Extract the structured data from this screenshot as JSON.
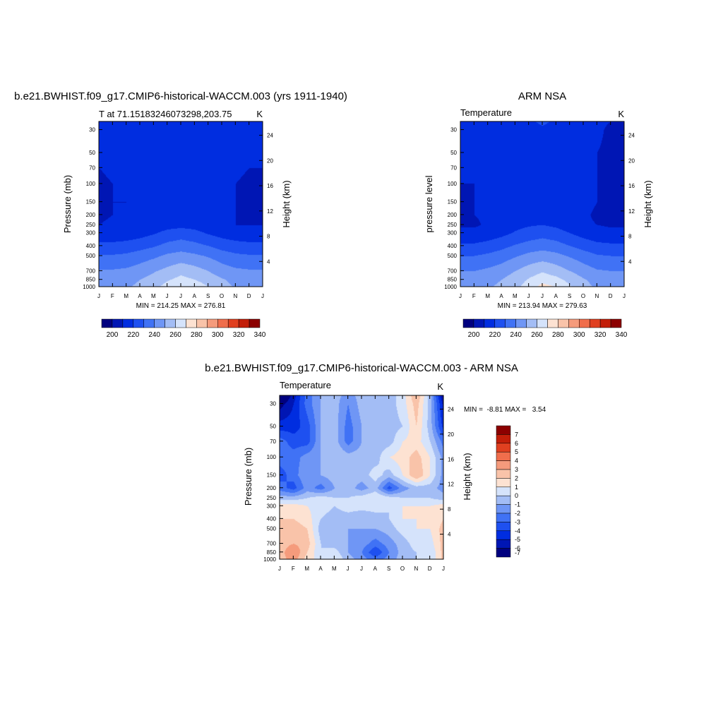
{
  "palette": [
    "#00007f",
    "#0016b4",
    "#002de0",
    "#1e50f0",
    "#4072f5",
    "#6f96f5",
    "#a3bdf5",
    "#d5e3fb",
    "#fde2d2",
    "#f9c3a9",
    "#f59b7c",
    "#f06e4c",
    "#e04020",
    "#c21e09",
    "#8c0000"
  ],
  "chart_data": [
    {
      "id": "model",
      "type": "contour",
      "title": "b.e21.BWHIST.f09_g17.CMIP6-historical-WACCM.003 (yrs 1911-1940)",
      "subtitle_left": "T at 71.15183246073298,203.75",
      "subtitle_right": "K",
      "xlabel": "",
      "ylabel": "Pressure (mb)",
      "ylabel_right": "Height (km)",
      "x_ticks": [
        "J",
        "F",
        "M",
        "A",
        "M",
        "J",
        "J",
        "A",
        "S",
        "O",
        "N",
        "D",
        "J"
      ],
      "y_ticks": [
        "30",
        "50",
        "70",
        "100",
        "150",
        "200",
        "250",
        "300",
        "400",
        "500",
        "700",
        "850",
        "1000"
      ],
      "y_ticks_right": [
        "24",
        "20",
        "16",
        "12",
        "8",
        "4"
      ],
      "y_scale": "log",
      "ylim": [
        1000,
        25
      ],
      "min_max": "MIN = 214.25 MAX = 276.81",
      "colorbar": {
        "orientation": "horizontal",
        "labels": [
          "200",
          "220",
          "240",
          "260",
          "280",
          "300",
          "320",
          "340"
        ],
        "levels": [
          195,
          200,
          205,
          210,
          215,
          220,
          225,
          230,
          235,
          240,
          245,
          250,
          255,
          260,
          265,
          270,
          275,
          280,
          285,
          290,
          295,
          300,
          305,
          310,
          315,
          320,
          325,
          330,
          335,
          340,
          345
        ]
      },
      "months": [
        "Jan",
        "Feb",
        "Mar",
        "Apr",
        "May",
        "Jun",
        "Jul",
        "Aug",
        "Sep",
        "Oct",
        "Nov",
        "Dec",
        "Jan"
      ],
      "pressure_levels": [
        25,
        30,
        50,
        70,
        100,
        150,
        200,
        250,
        300,
        400,
        500,
        700,
        850,
        1000
      ],
      "values": [
        [
          216,
          217,
          218,
          220,
          221,
          222,
          223,
          222,
          221,
          219,
          217,
          216,
          216
        ],
        [
          216,
          217,
          218,
          220,
          221,
          222,
          223,
          222,
          221,
          219,
          217,
          216,
          216
        ],
        [
          215,
          216,
          217,
          219,
          220,
          221,
          222,
          221,
          220,
          218,
          216,
          215,
          215
        ],
        [
          215,
          216,
          217,
          219,
          220,
          221,
          222,
          221,
          220,
          218,
          216,
          215,
          215
        ],
        [
          214,
          215,
          216,
          219,
          221,
          222,
          222,
          222,
          220,
          218,
          215,
          214,
          214
        ],
        [
          214,
          215,
          215,
          218,
          220,
          221,
          222,
          221,
          219,
          217,
          215,
          214,
          214
        ],
        [
          214,
          215,
          215,
          216,
          219,
          220,
          221,
          220,
          218,
          216,
          215,
          214,
          214
        ],
        [
          215,
          216,
          216,
          217,
          219,
          221,
          222,
          221,
          218,
          216,
          215,
          215,
          215
        ],
        [
          218,
          218,
          219,
          221,
          224,
          228,
          230,
          228,
          224,
          221,
          219,
          218,
          218
        ],
        [
          228,
          228,
          229,
          231,
          234,
          238,
          240,
          238,
          235,
          231,
          229,
          228,
          228
        ],
        [
          236,
          236,
          237,
          240,
          243,
          247,
          249,
          247,
          244,
          240,
          237,
          236,
          236
        ],
        [
          246,
          246,
          247,
          250,
          254,
          258,
          262,
          259,
          255,
          250,
          247,
          246,
          246
        ],
        [
          251,
          251,
          252,
          255,
          259,
          264,
          268,
          265,
          260,
          256,
          252,
          251,
          251
        ],
        [
          253,
          253,
          254,
          257,
          262,
          269,
          276,
          272,
          265,
          259,
          254,
          253,
          253
        ]
      ]
    },
    {
      "id": "obs",
      "type": "contour",
      "title": "ARM NSA",
      "subtitle_left": "Temperature",
      "subtitle_right": "K",
      "xlabel": "",
      "ylabel": "pressure level",
      "ylabel_right": "Height (km)",
      "x_ticks": [
        "J",
        "F",
        "M",
        "A",
        "M",
        "J",
        "J",
        "A",
        "S",
        "O",
        "N",
        "D",
        "J"
      ],
      "y_ticks": [
        "30",
        "50",
        "70",
        "100",
        "150",
        "200",
        "250",
        "300",
        "400",
        "500",
        "700",
        "850",
        "1000"
      ],
      "y_ticks_right": [
        "24",
        "20",
        "16",
        "12",
        "8",
        "4"
      ],
      "y_scale": "log",
      "ylim": [
        1000,
        25
      ],
      "min_max": "MIN = 213.94 MAX = 279.63",
      "colorbar": {
        "orientation": "horizontal",
        "labels": [
          "200",
          "220",
          "240",
          "260",
          "280",
          "300",
          "320",
          "340"
        ],
        "levels": [
          195,
          200,
          205,
          210,
          215,
          220,
          225,
          230,
          235,
          240,
          245,
          250,
          255,
          260,
          265,
          270,
          275,
          280,
          285,
          290,
          295,
          300,
          305,
          310,
          315,
          320,
          325,
          330,
          335,
          340,
          345
        ]
      },
      "months": [
        "Jan",
        "Feb",
        "Mar",
        "Apr",
        "May",
        "Jun",
        "Jul",
        "Aug",
        "Sep",
        "Oct",
        "Nov",
        "Dec",
        "Jan"
      ],
      "pressure_levels": [
        25,
        30,
        50,
        70,
        100,
        150,
        200,
        250,
        300,
        400,
        500,
        700,
        850,
        1000
      ],
      "values": [
        [
          217,
          218,
          219,
          221,
          222,
          224,
          226,
          224,
          222,
          220,
          216,
          215,
          215
        ],
        [
          216,
          217,
          218,
          220,
          221,
          223,
          224,
          223,
          221,
          219,
          216,
          214,
          214
        ],
        [
          215,
          216,
          217,
          219,
          220,
          222,
          223,
          222,
          220,
          218,
          215,
          214,
          214
        ],
        [
          215,
          216,
          217,
          219,
          220,
          221,
          222,
          221,
          220,
          218,
          215,
          214,
          214
        ],
        [
          215,
          215,
          216,
          218,
          220,
          221,
          222,
          221,
          220,
          217,
          215,
          214,
          214
        ],
        [
          214,
          215,
          216,
          218,
          220,
          221,
          222,
          221,
          219,
          217,
          215,
          214,
          214
        ],
        [
          214,
          215,
          216,
          218,
          220,
          221,
          222,
          221,
          219,
          216,
          214,
          214,
          214
        ],
        [
          214,
          214,
          216,
          219,
          222,
          224,
          225,
          223,
          219,
          216,
          215,
          214,
          214
        ],
        [
          217,
          217,
          219,
          222,
          226,
          229,
          231,
          229,
          225,
          221,
          218,
          217,
          217
        ],
        [
          227,
          227,
          229,
          232,
          236,
          239,
          241,
          239,
          235,
          231,
          228,
          227,
          227
        ],
        [
          235,
          235,
          237,
          240,
          244,
          248,
          250,
          248,
          244,
          240,
          236,
          235,
          235
        ],
        [
          245,
          245,
          247,
          250,
          255,
          260,
          264,
          260,
          255,
          250,
          246,
          245,
          245
        ],
        [
          250,
          250,
          252,
          255,
          260,
          266,
          271,
          268,
          262,
          256,
          251,
          250,
          250
        ],
        [
          252,
          252,
          254,
          257,
          262,
          270,
          279,
          275,
          266,
          259,
          253,
          252,
          252
        ]
      ]
    },
    {
      "id": "diff",
      "type": "contour",
      "title": "b.e21.BWHIST.f09_g17.CMIP6-historical-WACCM.003 - ARM NSA",
      "subtitle_left": "Temperature",
      "subtitle_right": "K",
      "xlabel": "",
      "ylabel": "Pressure (mb)",
      "ylabel_right": "Height (km)",
      "x_ticks": [
        "J",
        "F",
        "M",
        "A",
        "M",
        "J",
        "J",
        "A",
        "S",
        "O",
        "N",
        "D",
        "J"
      ],
      "y_ticks": [
        "30",
        "50",
        "70",
        "100",
        "150",
        "200",
        "250",
        "300",
        "400",
        "500",
        "700",
        "850",
        "1000"
      ],
      "y_ticks_right": [
        "24",
        "20",
        "16",
        "12",
        "8",
        "4"
      ],
      "y_scale": "log",
      "ylim": [
        1000,
        25
      ],
      "min_max": "MIN =  -8.81 MAX =   3.54",
      "colorbar": {
        "orientation": "vertical",
        "labels": [
          "7",
          "6",
          "5",
          "4",
          "3",
          "2",
          "1",
          "0",
          "-1",
          "-2",
          "-3",
          "-4",
          "-5",
          "-6",
          "-7"
        ],
        "levels": [
          -7.5,
          -6.5,
          -5.5,
          -4.5,
          -3.5,
          -2.5,
          -1.5,
          -0.5,
          0.5,
          1.5,
          2.5,
          3.5,
          4.5,
          5.5,
          6.5,
          7.5
        ]
      },
      "months": [
        "Jan",
        "Feb",
        "Mar",
        "Apr",
        "May",
        "Jun",
        "Jul",
        "Aug",
        "Sep",
        "Oct",
        "Nov",
        "Dec",
        "Jan"
      ],
      "pressure_levels": [
        25,
        30,
        50,
        70,
        100,
        150,
        200,
        250,
        300,
        400,
        500,
        700,
        850,
        1000
      ],
      "values": [
        [
          -8.5,
          -6,
          -3,
          -1.5,
          -1,
          -2,
          -1,
          -1.5,
          -1,
          0,
          2.5,
          -1,
          -7
        ],
        [
          -7,
          -5.5,
          -3,
          -1.5,
          -1,
          -2.5,
          -1,
          -1.5,
          -1,
          0,
          2,
          -1,
          -6
        ],
        [
          -5,
          -5,
          -4,
          -1.5,
          -1,
          -3,
          -1.5,
          -1,
          -1,
          -0.5,
          1.5,
          -1,
          -5
        ],
        [
          -3,
          -4,
          -4,
          -1.5,
          -1,
          -3,
          -1.5,
          -1,
          -1,
          0.5,
          1,
          -0.5,
          -3
        ],
        [
          -3,
          -3,
          -2,
          -1.5,
          -0.5,
          -1,
          -1,
          -1,
          0.5,
          1,
          2,
          0.5,
          -2
        ],
        [
          -4,
          -3,
          -1.5,
          -1.5,
          -1,
          -1,
          -1,
          0,
          -1,
          0.5,
          2.5,
          0.5,
          -2
        ],
        [
          -3,
          -4,
          -2,
          -3,
          -1.5,
          -1,
          -2,
          -1,
          -4,
          -2,
          -1,
          -1,
          -2
        ],
        [
          -1,
          -1,
          -0.5,
          0,
          -0.5,
          -0.5,
          0,
          0.5,
          0,
          -0.5,
          -0.5,
          -0.5,
          -1
        ],
        [
          1,
          1,
          0.5,
          0,
          -0.5,
          0,
          0,
          0,
          -0.5,
          0.5,
          0.5,
          0.5,
          1
        ],
        [
          1.5,
          1.5,
          1,
          -0.5,
          -1,
          -1,
          -1.5,
          -1,
          -0.5,
          0.5,
          0.5,
          0.5,
          1.5
        ],
        [
          2,
          2,
          1.5,
          -1,
          -1,
          -1.5,
          -1.5,
          -1.5,
          -1,
          0,
          0.5,
          0.5,
          2
        ],
        [
          2,
          2.5,
          2,
          -0.5,
          -1,
          -1.5,
          -2,
          -3,
          -2,
          -1,
          0,
          0,
          2
        ],
        [
          2,
          3.5,
          1.5,
          -0.5,
          0,
          -1.5,
          -2.5,
          -4.5,
          -2.5,
          -1,
          -0.5,
          -0.5,
          2
        ],
        [
          2,
          3,
          1,
          0,
          0.5,
          -1,
          -2,
          -3,
          -2,
          -1,
          -0.5,
          -0.5,
          2
        ]
      ]
    }
  ]
}
